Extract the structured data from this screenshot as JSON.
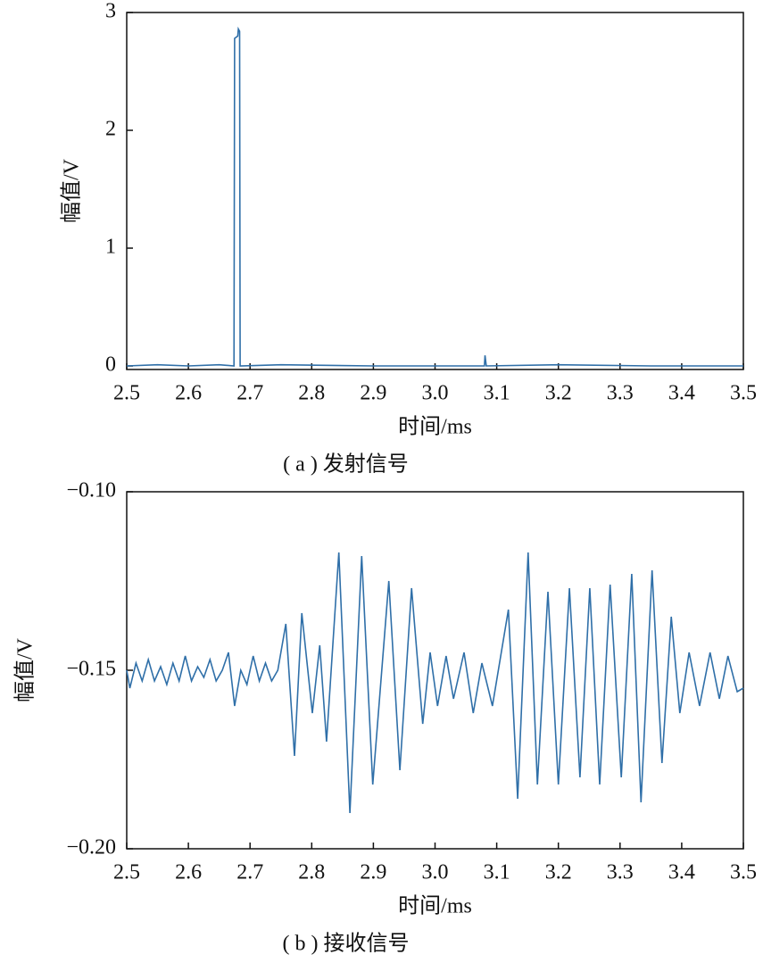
{
  "chart_data": [
    {
      "type": "line",
      "xlabel": "时间/ms",
      "ylabel": "幅值/V",
      "caption": "( a ) 发射信号",
      "color": "#2f6fa8",
      "xlim": [
        2.5,
        3.5
      ],
      "xticks": [
        2.5,
        2.6,
        2.7,
        2.8,
        2.9,
        {
          "value": 3,
          "label": "3.0"
        },
        3.1,
        3.2,
        3.3,
        3.4,
        3.5
      ],
      "ylim": [
        -0.03,
        3
      ],
      "yticks": [
        0,
        1,
        2,
        3
      ],
      "x": [
        2.5,
        2.55,
        2.6,
        2.65,
        2.674,
        2.675,
        2.68,
        2.681,
        2.683,
        2.684,
        2.75,
        2.9,
        3.08,
        3.081,
        3.083,
        3.2,
        3.35,
        3.5
      ],
      "values": [
        0,
        0.01,
        0,
        0.01,
        0,
        2.78,
        2.8,
        2.86,
        2.84,
        0,
        0.01,
        0,
        0,
        0.09,
        0,
        0.01,
        0,
        0
      ]
    },
    {
      "type": "line",
      "xlabel": "时间/ms",
      "ylabel": "幅值/V",
      "caption": "( b ) 接收信号",
      "color": "#2f6fa8",
      "xlim": [
        2.5,
        3.5
      ],
      "xticks": [
        2.5,
        2.6,
        2.7,
        2.8,
        2.9,
        {
          "value": 3,
          "label": "3.0"
        },
        3.1,
        3.2,
        3.3,
        3.4,
        3.5
      ],
      "ylim": [
        -0.2,
        -0.1
      ],
      "yticks": [
        {
          "value": -0.2,
          "label": "−0.20"
        },
        {
          "value": -0.15,
          "label": "−0.15"
        },
        {
          "value": -0.1,
          "label": "−0.10"
        }
      ],
      "x": [
        2.5,
        2.505,
        2.515,
        2.525,
        2.535,
        2.545,
        2.555,
        2.565,
        2.575,
        2.585,
        2.595,
        2.605,
        2.615,
        2.625,
        2.635,
        2.645,
        2.655,
        2.665,
        2.675,
        2.685,
        2.695,
        2.705,
        2.715,
        2.725,
        2.735,
        2.745,
        2.758,
        2.772,
        2.784,
        2.801,
        2.813,
        2.824,
        2.844,
        2.862,
        2.881,
        2.899,
        2.925,
        2.943,
        2.962,
        2.98,
        2.992,
        3.004,
        3.018,
        3.03,
        3.047,
        3.062,
        3.076,
        3.093,
        3.119,
        3.134,
        3.151,
        3.166,
        3.183,
        3.2,
        3.218,
        3.235,
        3.251,
        3.267,
        3.284,
        3.302,
        3.319,
        3.334,
        3.352,
        3.368,
        3.383,
        3.397,
        3.412,
        3.429,
        3.446,
        3.461,
        3.475,
        3.49,
        3.5
      ],
      "values": [
        -0.15,
        -0.155,
        -0.148,
        -0.153,
        -0.147,
        -0.153,
        -0.149,
        -0.154,
        -0.148,
        -0.153,
        -0.146,
        -0.153,
        -0.149,
        -0.152,
        -0.147,
        -0.153,
        -0.15,
        -0.145,
        -0.16,
        -0.15,
        -0.154,
        -0.146,
        -0.153,
        -0.148,
        -0.153,
        -0.15,
        -0.137,
        -0.174,
        -0.134,
        -0.162,
        -0.143,
        -0.17,
        -0.117,
        -0.19,
        -0.118,
        -0.182,
        -0.125,
        -0.178,
        -0.127,
        -0.165,
        -0.145,
        -0.16,
        -0.146,
        -0.158,
        -0.145,
        -0.162,
        -0.148,
        -0.16,
        -0.133,
        -0.186,
        -0.117,
        -0.182,
        -0.128,
        -0.182,
        -0.127,
        -0.18,
        -0.127,
        -0.182,
        -0.126,
        -0.18,
        -0.123,
        -0.187,
        -0.122,
        -0.176,
        -0.135,
        -0.162,
        -0.145,
        -0.16,
        -0.145,
        -0.158,
        -0.146,
        -0.156,
        -0.155
      ]
    }
  ]
}
